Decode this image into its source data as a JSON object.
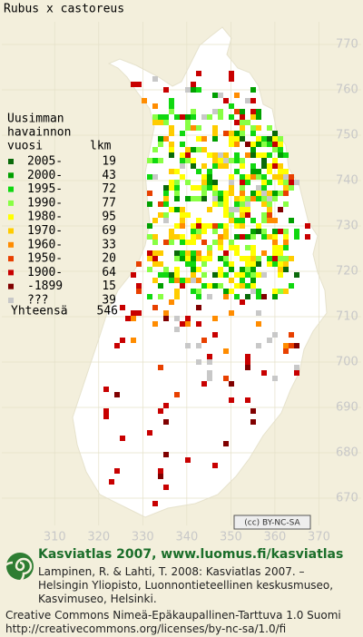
{
  "title": "Rubus x castoreus",
  "legend": {
    "heading": [
      "Uusimman",
      "havainnon",
      "vuosi"
    ],
    "count_heading": "lkm",
    "rows": [
      {
        "label": "2005-",
        "count": 19,
        "color": "#0a6a0a"
      },
      {
        "label": "2000-",
        "count": 43,
        "color": "#00a000"
      },
      {
        "label": "1995-",
        "count": 72,
        "color": "#10d810"
      },
      {
        "label": "1990-",
        "count": 77,
        "color": "#88ff44"
      },
      {
        "label": "1980-",
        "count": 95,
        "color": "#ffff00"
      },
      {
        "label": "1970-",
        "count": 69,
        "color": "#ffcc00"
      },
      {
        "label": "1960-",
        "count": 33,
        "color": "#ff8c00"
      },
      {
        "label": "1950-",
        "count": 20,
        "color": "#e84000"
      },
      {
        "label": "1900-",
        "count": 64,
        "color": "#c80000"
      },
      {
        "label": "-1899",
        "count": 15,
        "color": "#800000"
      },
      {
        "label": "???",
        "count": 39,
        "color": "#c8c8c8"
      }
    ],
    "total_label": "Yhteensä",
    "total": 546
  },
  "map": {
    "xlim": [
      298,
      380
    ],
    "ylim": [
      664,
      775
    ],
    "xticks": [
      310,
      320,
      330,
      340,
      350,
      360,
      370
    ],
    "yticks": [
      670,
      680,
      690,
      700,
      710,
      720,
      730,
      740,
      750,
      760,
      770
    ]
  },
  "license_badge": "(cc) BY-NC-SA",
  "footer": {
    "title": "Kasviatlas 2007, www.luomus.fi/kasviatlas",
    "citation": [
      "Lampinen, R. & Lahti, T. 2008: Kasviatlas 2007. –",
      "Helsingin Yliopisto, Luonnontieteellinen keskusmuseo,",
      "Kasvimuseo, Helsinki."
    ],
    "license": [
      "Creative Commons Nimeä-Epäkaupallinen-Tarttuva 1.0 Suomi",
      "http://creativecommons.org/licenses/by-nc-sa/1.0/fi"
    ]
  }
}
